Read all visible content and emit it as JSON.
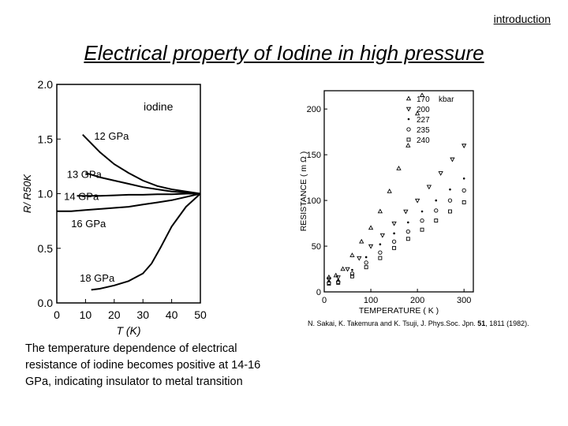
{
  "header": {
    "section_label": "introduction",
    "title": "Electrical property of Iodine in high pressure"
  },
  "citation": {
    "prefix": "N. Sakai, K. Takemura and K. Tsuji, J. Phys.Soc. Jpn. ",
    "volume": "51",
    "suffix": ", 1811 (1982)."
  },
  "caption": "The temperature dependence of electrical resistance of iodine becomes positive at 14-16 GPa, indicating insulator to metal transition",
  "chart_data": [
    {
      "type": "line",
      "annotation": "iodine",
      "xlabel": "T (K)",
      "ylabel": "R/ R50K",
      "xlim": [
        0,
        50
      ],
      "ylim": [
        0,
        2.0
      ],
      "xticks": [
        "0",
        "10",
        "20",
        "30",
        "40",
        "50"
      ],
      "yticks": [
        "0.0",
        "0.5",
        "1.0",
        "1.5",
        "2.0"
      ],
      "grid": false,
      "series": [
        {
          "name": "12 GPa",
          "x": [
            9,
            12,
            15,
            20,
            25,
            30,
            35,
            40,
            45,
            50
          ],
          "y": [
            1.54,
            1.46,
            1.38,
            1.27,
            1.19,
            1.12,
            1.07,
            1.04,
            1.02,
            1.0
          ]
        },
        {
          "name": "13 GPa",
          "x": [
            10,
            15,
            20,
            25,
            30,
            35,
            40,
            45,
            50
          ],
          "y": [
            1.19,
            1.15,
            1.12,
            1.09,
            1.06,
            1.04,
            1.02,
            1.01,
            1.0
          ]
        },
        {
          "name": "14 GPa",
          "x": [
            7,
            10,
            15,
            20,
            25,
            30,
            35,
            40,
            45,
            50
          ],
          "y": [
            0.98,
            0.98,
            0.98,
            0.985,
            0.99,
            0.99,
            0.995,
            0.995,
            1.0,
            1.0
          ]
        },
        {
          "name": "16 GPa",
          "x": [
            0,
            5,
            10,
            15,
            20,
            25,
            30,
            35,
            40,
            45,
            50
          ],
          "y": [
            0.84,
            0.84,
            0.85,
            0.86,
            0.87,
            0.88,
            0.9,
            0.92,
            0.94,
            0.97,
            1.0
          ]
        },
        {
          "name": "18 GPa",
          "x": [
            12,
            15,
            20,
            25,
            30,
            33,
            36,
            40,
            45,
            50
          ],
          "y": [
            0.12,
            0.13,
            0.16,
            0.2,
            0.27,
            0.36,
            0.5,
            0.7,
            0.88,
            1.0
          ]
        }
      ]
    },
    {
      "type": "scatter",
      "xlabel": "TEMPERATURE ( K )",
      "ylabel": "RESISTANCE ( m Ω )",
      "xlim": [
        0,
        320
      ],
      "ylim": [
        0,
        220
      ],
      "xticks": [
        "0",
        "100",
        "200",
        "300"
      ],
      "yticks": [
        "0",
        "50",
        "100",
        "150",
        "200"
      ],
      "legend_title": "kbar",
      "legend_position": "top-right",
      "grid": false,
      "series": [
        {
          "name": "170",
          "marker": "triangle",
          "x": [
            10,
            25,
            40,
            60,
            80,
            100,
            120,
            140,
            160,
            180,
            200,
            210
          ],
          "y": [
            16,
            18,
            25,
            40,
            55,
            70,
            88,
            110,
            135,
            160,
            195,
            215
          ]
        },
        {
          "name": "200",
          "marker": "triangle-down",
          "x": [
            10,
            30,
            50,
            75,
            100,
            125,
            150,
            175,
            200,
            225,
            250,
            275,
            300
          ],
          "y": [
            14,
            16,
            25,
            37,
            50,
            62,
            75,
            88,
            100,
            115,
            130,
            145,
            160
          ]
        },
        {
          "name": "227",
          "marker": "dot",
          "x": [
            10,
            30,
            60,
            90,
            120,
            150,
            180,
            210,
            240,
            270,
            300
          ],
          "y": [
            12,
            13,
            24,
            38,
            52,
            64,
            76,
            88,
            100,
            112,
            124
          ]
        },
        {
          "name": "235",
          "marker": "circle",
          "x": [
            10,
            30,
            60,
            90,
            120,
            150,
            180,
            210,
            240,
            270,
            300
          ],
          "y": [
            10,
            11,
            20,
            32,
            43,
            55,
            66,
            78,
            89,
            100,
            111
          ]
        },
        {
          "name": "240",
          "marker": "square",
          "x": [
            10,
            30,
            60,
            90,
            120,
            150,
            180,
            210,
            240,
            270,
            300
          ],
          "y": [
            9,
            10,
            17,
            27,
            37,
            48,
            58,
            68,
            78,
            88,
            98
          ]
        }
      ]
    }
  ]
}
